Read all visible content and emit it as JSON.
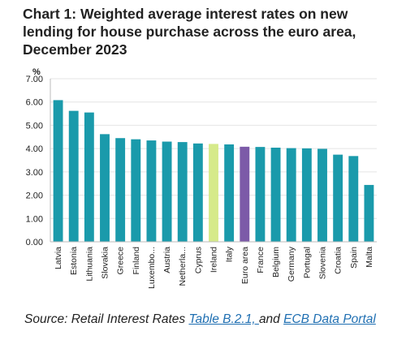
{
  "title": "Chart 1: Weighted average interest rates on new lending for house purchase across the euro area, December 2023",
  "colors": {
    "bar": "#1a9aab",
    "ireland": "#d6ea8a",
    "euro_area": "#7c5aa8",
    "axis_text": "#222222",
    "grid": "#e4e4e4"
  },
  "chart_data": {
    "type": "bar",
    "title": "Chart 1: Weighted average interest rates on new lending for house purchase across the euro area, December 2023",
    "xlabel": "",
    "ylabel": "%",
    "ylim": [
      0,
      7
    ],
    "yticks": [
      "0.00",
      "1.00",
      "2.00",
      "3.00",
      "4.00",
      "5.00",
      "6.00",
      "7.00"
    ],
    "grid": true,
    "categories": [
      "Latvia",
      "Estonia",
      "Lithuania",
      "Slovakia",
      "Greece",
      "Finland",
      "Luxembo...",
      "Austria",
      "Netherla...",
      "Cyprus",
      "Ireland",
      "Italy",
      "Euro area",
      "France",
      "Belgium",
      "Germany",
      "Portugal",
      "Slovenia",
      "Croatia",
      "Spain",
      "Malta"
    ],
    "values": [
      6.08,
      5.62,
      5.55,
      4.62,
      4.45,
      4.4,
      4.35,
      4.3,
      4.28,
      4.22,
      4.2,
      4.18,
      4.08,
      4.07,
      4.04,
      4.02,
      4.01,
      3.99,
      3.74,
      3.68,
      2.44
    ],
    "highlight": {
      "Ireland": "ireland",
      "Euro area": "euro_area"
    }
  },
  "source": {
    "prefix": "Source: Retail Interest Rates ",
    "link1": "Table B.2.1, ",
    "middle": "and ",
    "link2": "ECB Data Portal"
  }
}
